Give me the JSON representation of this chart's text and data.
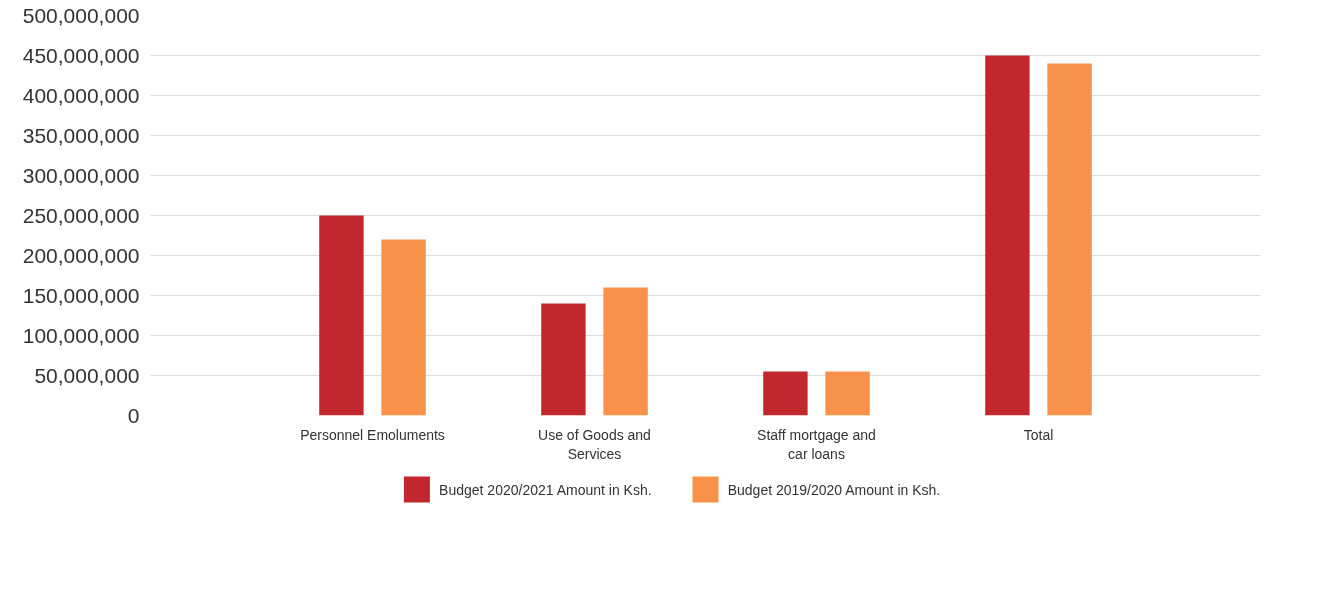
{
  "chart_data": {
    "type": "bar",
    "categories": [
      "Personnel Emoluments",
      "Use of Goods and Services",
      "Staff mortgage and car loans",
      "Total"
    ],
    "series": [
      {
        "name": "Budget 2020/2021 Amount in Ksh.",
        "color": "#c1272d",
        "values": [
          250000000,
          140000000,
          55000000,
          450000000
        ]
      },
      {
        "name": "Budget 2019/2020 Amount in Ksh.",
        "color": "#f8924a",
        "values": [
          220000000,
          160000000,
          55000000,
          440000000
        ]
      }
    ],
    "ylim": [
      0,
      500000000
    ],
    "yticks": [
      {
        "value": 0,
        "label": "0"
      },
      {
        "value": 50000000,
        "label": "50,000,000"
      },
      {
        "value": 100000000,
        "label": "100,000,000"
      },
      {
        "value": 150000000,
        "label": "150,000,000"
      },
      {
        "value": 200000000,
        "label": "200,000,000"
      },
      {
        "value": 250000000,
        "label": "250,000,000"
      },
      {
        "value": 300000000,
        "label": "300,000,000"
      },
      {
        "value": 350000000,
        "label": "350,000,000"
      },
      {
        "value": 400000000,
        "label": "400,000,000"
      },
      {
        "value": 450000000,
        "label": "450,000,000"
      },
      {
        "value": 500000000,
        "label": "500,000,000"
      }
    ],
    "grid": "y",
    "legend": "bottom"
  }
}
